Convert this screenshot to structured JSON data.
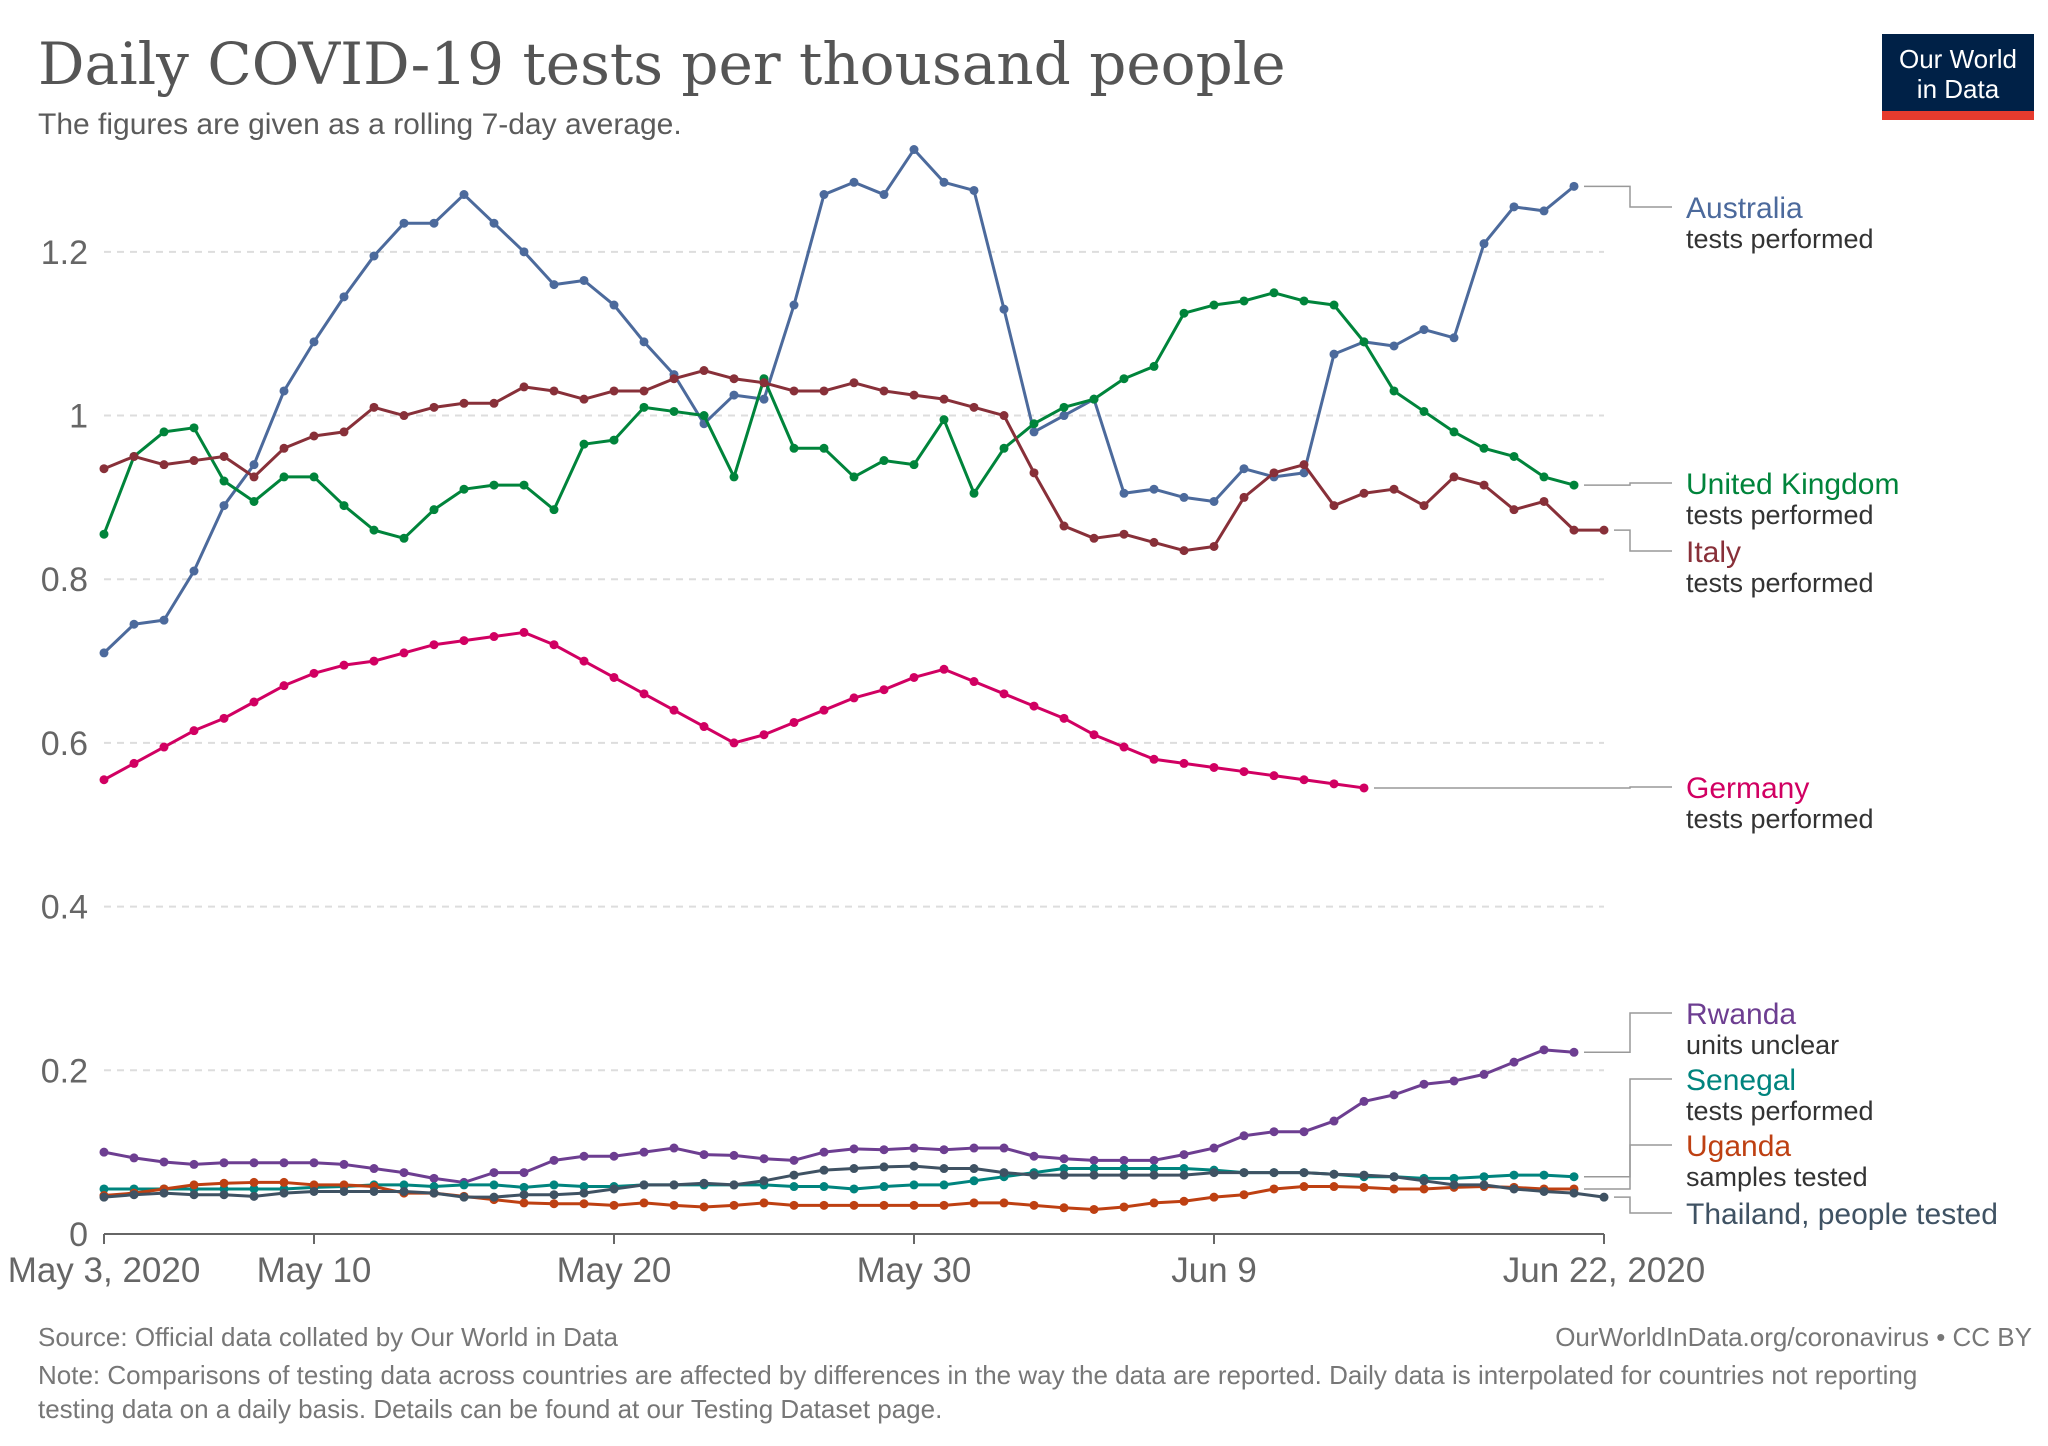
{
  "header": {
    "title": "Daily COVID-19 tests per thousand people",
    "subtitle": "The figures are given as a rolling 7-day average."
  },
  "logo": {
    "line1": "Our World",
    "line2": "in Data"
  },
  "footer": {
    "source": "Source: Official data collated by Our World in Data",
    "site": "OurWorldInData.org/coronavirus • CC BY",
    "note": "Note: Comparisons of testing data across countries are affected by differences in the way the data are reported. Daily data is interpolated for countries not reporting testing data on a daily basis. Details can be found at our Testing Dataset page."
  },
  "colors": {
    "grid": "#dddddd",
    "axis": "#666666",
    "tick_text": "#666666",
    "connector": "#999999"
  },
  "chart_data": {
    "type": "line",
    "title": "Daily COVID-19 tests per thousand people",
    "xlabel": "",
    "ylabel": "",
    "ylim": [
      0,
      1.3
    ],
    "yticks": [
      0,
      0.2,
      0.4,
      0.6,
      0.8,
      1,
      1.2
    ],
    "ytick_labels": [
      "0",
      "0.2",
      "0.4",
      "0.6",
      "0.8",
      "1",
      "1.2"
    ],
    "x_day_range": [
      0,
      50
    ],
    "xticks": [
      0,
      7,
      17,
      27,
      37,
      50
    ],
    "xtick_labels": [
      "May 3, 2020",
      "May 10",
      "May 20",
      "May 30",
      "Jun 9",
      "Jun 22, 2020"
    ],
    "grid": true,
    "legend": "right",
    "x_start": 0,
    "series": [
      {
        "name": "Australia",
        "sublabel": "tests performed",
        "color": "#4c6a9c",
        "start_day": 0,
        "values": [
          0.71,
          0.745,
          0.75,
          0.81,
          0.89,
          0.94,
          1.03,
          1.09,
          1.145,
          1.195,
          1.235,
          1.235,
          1.27,
          1.235,
          1.2,
          1.16,
          1.165,
          1.135,
          1.09,
          1.05,
          0.99,
          1.025,
          1.02,
          1.135,
          1.27,
          1.285,
          1.27,
          1.325,
          1.285,
          1.275,
          1.13,
          0.98,
          1.0,
          1.02,
          0.905,
          0.91,
          0.9,
          0.895,
          0.935,
          0.925,
          0.93,
          1.075,
          1.09,
          1.085,
          1.105,
          1.095,
          1.21,
          1.255,
          1.25,
          1.28
        ]
      },
      {
        "name": "United Kingdom",
        "sublabel": "tests performed",
        "color": "#00843b",
        "start_day": 0,
        "values": [
          0.855,
          0.95,
          0.98,
          0.985,
          0.92,
          0.895,
          0.925,
          0.925,
          0.89,
          0.86,
          0.85,
          0.885,
          0.91,
          0.915,
          0.915,
          0.885,
          0.965,
          0.97,
          1.01,
          1.005,
          1.0,
          0.925,
          1.045,
          0.96,
          0.96,
          0.925,
          0.945,
          0.94,
          0.995,
          0.905,
          0.96,
          0.99,
          1.01,
          1.02,
          1.045,
          1.06,
          1.125,
          1.135,
          1.14,
          1.15,
          1.14,
          1.135,
          1.09,
          1.03,
          1.005,
          0.98,
          0.96,
          0.95,
          0.925,
          0.915
        ]
      },
      {
        "name": "Italy",
        "sublabel": "tests performed",
        "color": "#883039",
        "start_day": 0,
        "values": [
          0.935,
          0.95,
          0.94,
          0.945,
          0.95,
          0.925,
          0.96,
          0.975,
          0.98,
          1.01,
          1.0,
          1.01,
          1.015,
          1.015,
          1.035,
          1.03,
          1.02,
          1.03,
          1.03,
          1.045,
          1.055,
          1.045,
          1.04,
          1.03,
          1.03,
          1.04,
          1.03,
          1.025,
          1.02,
          1.01,
          1.0,
          0.93,
          0.865,
          0.85,
          0.855,
          0.845,
          0.835,
          0.84,
          0.9,
          0.93,
          0.94,
          0.89,
          0.905,
          0.91,
          0.89,
          0.925,
          0.915,
          0.885,
          0.895,
          0.86,
          0.86
        ]
      },
      {
        "name": "Germany",
        "sublabel": "tests performed",
        "color": "#d10062",
        "start_day": 0,
        "values": [
          0.555,
          0.575,
          0.595,
          0.615,
          0.63,
          0.65,
          0.67,
          0.685,
          0.695,
          0.7,
          0.71,
          0.72,
          0.725,
          0.73,
          0.735,
          0.72,
          0.7,
          0.68,
          0.66,
          0.64,
          0.62,
          0.6,
          0.61,
          0.625,
          0.64,
          0.655,
          0.665,
          0.68,
          0.69,
          0.675,
          0.66,
          0.645,
          0.63,
          0.61,
          0.595,
          0.58,
          0.575,
          0.57,
          0.565,
          0.56,
          0.555,
          0.55,
          0.545
        ]
      },
      {
        "name": "Rwanda",
        "sublabel": "units unclear",
        "color": "#6d3e91",
        "start_day": 0,
        "values": [
          0.1,
          0.093,
          0.088,
          0.085,
          0.087,
          0.087,
          0.087,
          0.087,
          0.085,
          0.08,
          0.075,
          0.068,
          0.063,
          0.075,
          0.075,
          0.09,
          0.095,
          0.095,
          0.1,
          0.105,
          0.097,
          0.096,
          0.092,
          0.09,
          0.1,
          0.104,
          0.103,
          0.105,
          0.103,
          0.105,
          0.105,
          0.095,
          0.092,
          0.09,
          0.09,
          0.09,
          0.097,
          0.105,
          0.12,
          0.125,
          0.125,
          0.138,
          0.162,
          0.17,
          0.183,
          0.187,
          0.195,
          0.21,
          0.225,
          0.222
        ]
      },
      {
        "name": "Senegal",
        "sublabel": "tests performed",
        "color": "#00847e",
        "start_day": 0,
        "values": [
          0.055,
          0.055,
          0.055,
          0.055,
          0.055,
          0.055,
          0.055,
          0.057,
          0.058,
          0.06,
          0.06,
          0.058,
          0.06,
          0.06,
          0.057,
          0.06,
          0.058,
          0.058,
          0.06,
          0.06,
          0.06,
          0.06,
          0.06,
          0.058,
          0.058,
          0.055,
          0.058,
          0.06,
          0.06,
          0.065,
          0.07,
          0.075,
          0.08,
          0.08,
          0.08,
          0.08,
          0.08,
          0.078,
          0.075,
          0.075,
          0.075,
          0.073,
          0.07,
          0.07,
          0.068,
          0.068,
          0.07,
          0.072,
          0.072,
          0.07
        ]
      },
      {
        "name": "Uganda",
        "sublabel": "samples tested",
        "color": "#be4012",
        "start_day": 0,
        "values": [
          0.047,
          0.05,
          0.055,
          0.06,
          0.062,
          0.063,
          0.063,
          0.06,
          0.06,
          0.058,
          0.05,
          0.05,
          0.046,
          0.042,
          0.038,
          0.037,
          0.037,
          0.035,
          0.038,
          0.035,
          0.033,
          0.035,
          0.038,
          0.035,
          0.035,
          0.035,
          0.035,
          0.035,
          0.035,
          0.038,
          0.038,
          0.035,
          0.032,
          0.03,
          0.033,
          0.038,
          0.04,
          0.045,
          0.048,
          0.055,
          0.058,
          0.058,
          0.057,
          0.055,
          0.055,
          0.057,
          0.058,
          0.057,
          0.055,
          0.055
        ]
      },
      {
        "name": "Thailand",
        "sublabel": "people tested",
        "color": "#3f5263",
        "start_day": 0,
        "values": [
          0.045,
          0.048,
          0.05,
          0.048,
          0.048,
          0.046,
          0.05,
          0.052,
          0.052,
          0.052,
          0.052,
          0.05,
          0.045,
          0.045,
          0.048,
          0.048,
          0.05,
          0.055,
          0.06,
          0.06,
          0.062,
          0.06,
          0.065,
          0.072,
          0.078,
          0.08,
          0.082,
          0.083,
          0.08,
          0.08,
          0.075,
          0.072,
          0.072,
          0.072,
          0.072,
          0.072,
          0.072,
          0.075,
          0.075,
          0.075,
          0.075,
          0.073,
          0.072,
          0.07,
          0.065,
          0.06,
          0.06,
          0.055,
          0.052,
          0.05,
          0.045
        ]
      }
    ]
  }
}
